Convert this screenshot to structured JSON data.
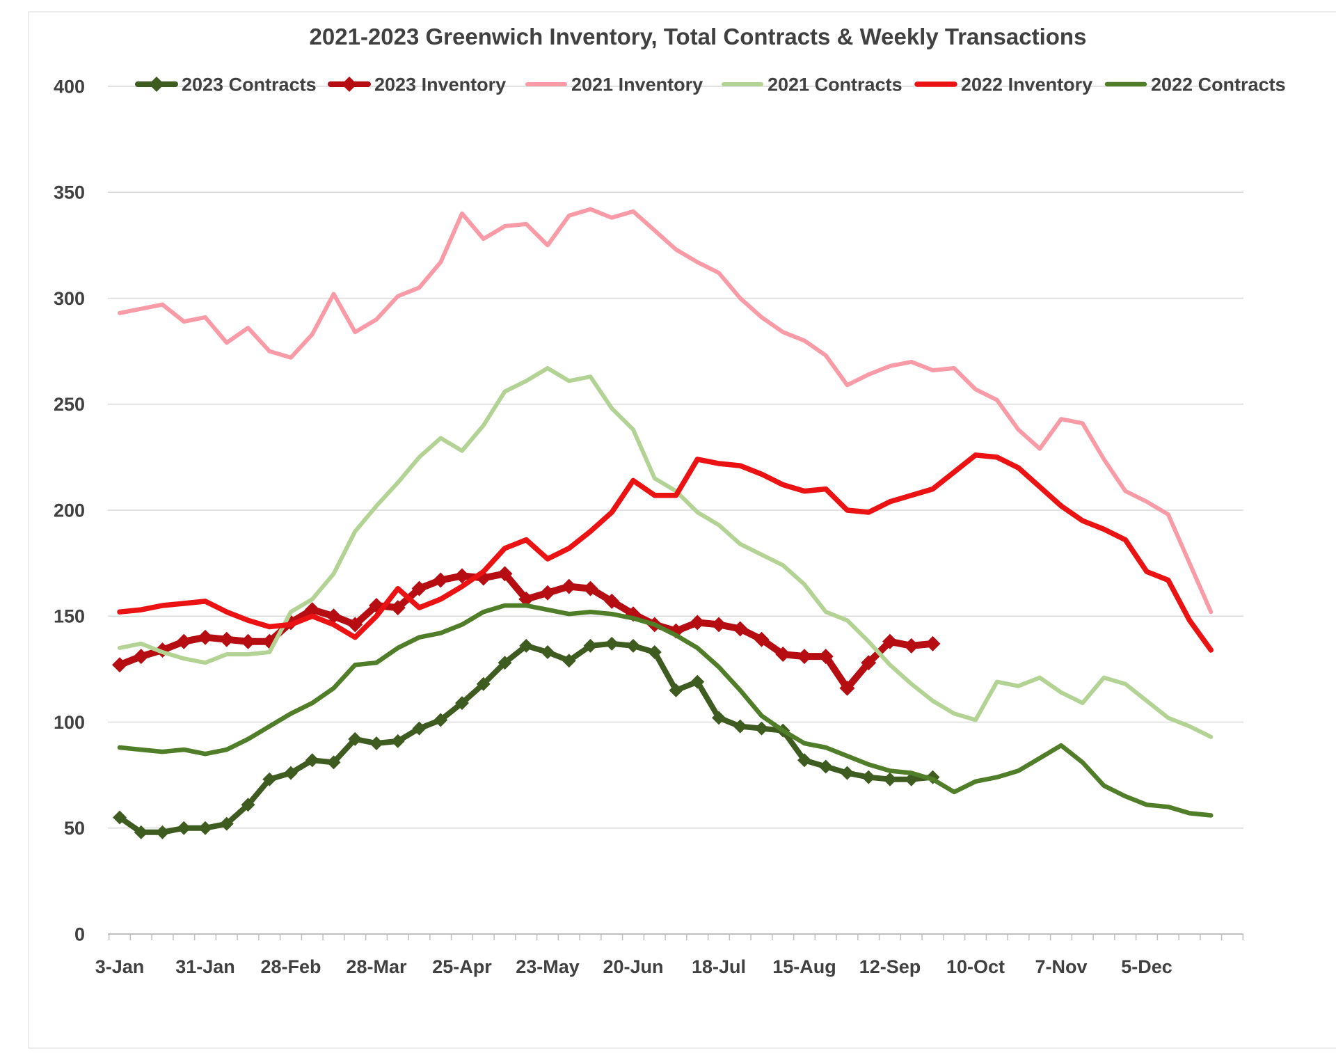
{
  "title": "2021-2023 Greenwich Inventory, Total Contracts & Weekly Transactions",
  "colors": {
    "text": "#404040",
    "gridline": "#d9d9d9",
    "axis_line": "#bfbfbf",
    "background": "#ffffff"
  },
  "y_axis": {
    "min": 0,
    "max": 400,
    "step": 50,
    "tick_labels": [
      "0",
      "50",
      "100",
      "150",
      "200",
      "250",
      "300",
      "350",
      "400"
    ]
  },
  "x_axis": {
    "tick_labels": [
      "3-Jan",
      "31-Jan",
      "28-Feb",
      "28-Mar",
      "25-Apr",
      "23-May",
      "20-Jun",
      "18-Jul",
      "15-Aug",
      "12-Sep",
      "10-Oct",
      "7-Nov",
      "5-Dec"
    ],
    "label_every_n_weeks": 4,
    "total_week_slots": 53
  },
  "legend": {
    "items": [
      {
        "label": "2023 Contracts",
        "color": "#3e5c20",
        "marker": "diamond"
      },
      {
        "label": "2023 Inventory",
        "color": "#b50d12",
        "marker": "diamond"
      },
      {
        "label": "2021 Inventory",
        "color": "#f89ba6",
        "marker": "none"
      },
      {
        "label": "2021 Contracts",
        "color": "#b2d393",
        "marker": "none"
      },
      {
        "label": "2022 Inventory",
        "color": "#ea1212",
        "marker": "none"
      },
      {
        "label": "2022 Contracts",
        "color": "#4f7d28",
        "marker": "none"
      }
    ]
  },
  "chart_data": {
    "type": "line",
    "title": "2021-2023 Greenwich Inventory, Total Contracts & Weekly Transactions",
    "xlabel": "",
    "ylabel": "",
    "ylim": [
      0,
      400
    ],
    "grid": "horizontal",
    "legend_position": "top",
    "x_unit": "week-of-year",
    "series": [
      {
        "name": "2023 Contracts",
        "color": "#3e5c20",
        "marker": "diamond",
        "start_week": 1,
        "values": [
          55,
          48,
          48,
          50,
          50,
          52,
          61,
          73,
          76,
          82,
          81,
          92,
          90,
          91,
          97,
          101,
          109,
          118,
          128,
          136,
          133,
          129,
          136,
          137,
          136,
          133,
          115,
          119,
          102,
          98,
          97,
          96,
          82,
          79,
          76,
          74,
          73,
          73,
          74
        ]
      },
      {
        "name": "2023 Inventory",
        "color": "#b50d12",
        "marker": "diamond",
        "start_week": 1,
        "values": [
          127,
          131,
          134,
          138,
          140,
          139,
          138,
          138,
          147,
          153,
          150,
          146,
          155,
          154,
          163,
          167,
          169,
          168,
          170,
          158,
          161,
          164,
          163,
          157,
          151,
          146,
          143,
          147,
          146,
          144,
          139,
          132,
          131,
          131,
          116,
          128,
          138,
          136,
          137
        ]
      },
      {
        "name": "2021 Inventory",
        "color": "#f89ba6",
        "marker": "none",
        "start_week": 1,
        "values": [
          293,
          295,
          297,
          289,
          291,
          279,
          286,
          275,
          272,
          283,
          302,
          284,
          290,
          301,
          305,
          317,
          340,
          328,
          334,
          335,
          325,
          339,
          342,
          338,
          341,
          332,
          323,
          317,
          312,
          300,
          291,
          284,
          280,
          273,
          259,
          264,
          268,
          270,
          266,
          267,
          257,
          252,
          238,
          229,
          243,
          241,
          224,
          209,
          204,
          198,
          175,
          152
        ]
      },
      {
        "name": "2021 Contracts",
        "color": "#b2d393",
        "marker": "none",
        "start_week": 1,
        "values": [
          135,
          137,
          133,
          130,
          128,
          132,
          132,
          133,
          152,
          158,
          170,
          190,
          202,
          213,
          225,
          234,
          228,
          240,
          256,
          261,
          267,
          261,
          263,
          248,
          238,
          215,
          209,
          199,
          193,
          184,
          179,
          174,
          165,
          152,
          148,
          138,
          127,
          118,
          110,
          104,
          101,
          119,
          117,
          121,
          114,
          109,
          121,
          118,
          110,
          102,
          98,
          93
        ]
      },
      {
        "name": "2022 Inventory",
        "color": "#ea1212",
        "marker": "none",
        "start_week": 1,
        "values": [
          152,
          153,
          155,
          156,
          157,
          152,
          148,
          145,
          146,
          150,
          146,
          140,
          150,
          163,
          154,
          158,
          164,
          171,
          182,
          186,
          177,
          182,
          190,
          199,
          214,
          207,
          207,
          224,
          222,
          221,
          217,
          212,
          209,
          210,
          200,
          199,
          204,
          207,
          210,
          218,
          226,
          225,
          220,
          211,
          202,
          195,
          191,
          186,
          171,
          167,
          148,
          134
        ]
      },
      {
        "name": "2022 Contracts",
        "color": "#4f7d28",
        "marker": "none",
        "start_week": 1,
        "values": [
          88,
          87,
          86,
          87,
          85,
          87,
          92,
          98,
          104,
          109,
          116,
          127,
          128,
          135,
          140,
          142,
          146,
          152,
          155,
          155,
          153,
          151,
          152,
          151,
          149,
          146,
          141,
          135,
          126,
          115,
          103,
          96,
          90,
          88,
          84,
          80,
          77,
          76,
          73,
          67,
          72,
          74,
          77,
          83,
          89,
          81,
          70,
          65,
          61,
          60,
          57,
          56
        ]
      }
    ]
  }
}
